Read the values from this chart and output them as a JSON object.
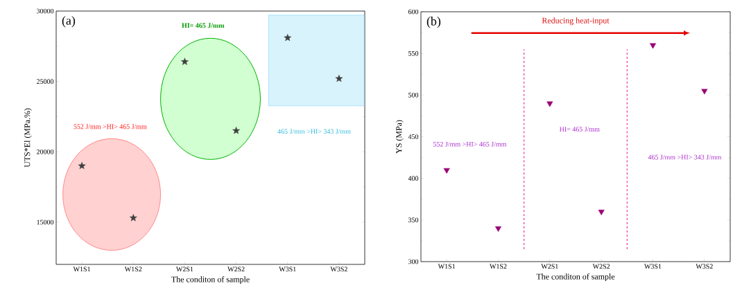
{
  "chart_data": [
    {
      "type": "scatter",
      "title": "(a)",
      "xlabel": "The conditon of sample",
      "ylabel": "UTS*El (MPa.%)",
      "categories": [
        "W1S1",
        "W1S2",
        "W2S1",
        "W2S2",
        "W3S1",
        "W3S2"
      ],
      "values": [
        19000,
        15300,
        26400,
        21500,
        28100,
        25200
      ],
      "color": "#404040",
      "marker": "star",
      "ylim": [
        12000,
        30000
      ],
      "yticks": [
        15000,
        20000,
        25000,
        30000
      ],
      "annotations": [
        "HI= 465 J/mm",
        "552 J/mm >HI> 465 J/mm",
        "465 J/mm >HI> 343 J/mm"
      ]
    },
    {
      "type": "scatter",
      "title": "(b)",
      "xlabel": "The conditon of sample",
      "ylabel": "YS (MPa)",
      "categories": [
        "W1S1",
        "W1S2",
        "W2S1",
        "W2S2",
        "W3S1",
        "W3S2"
      ],
      "values": [
        410,
        340,
        490,
        360,
        560,
        505
      ],
      "color": "#990077",
      "marker": "triangle",
      "ylim": [
        300,
        600
      ],
      "yticks": [
        300,
        350,
        400,
        450,
        500,
        550,
        600
      ],
      "annotations": [
        "Reducing heat-input",
        "552 J/mm >HI> 465 J/mm",
        "HI= 465 J/mm",
        "465 J/mm >HI> 343 J/mm"
      ]
    }
  ]
}
